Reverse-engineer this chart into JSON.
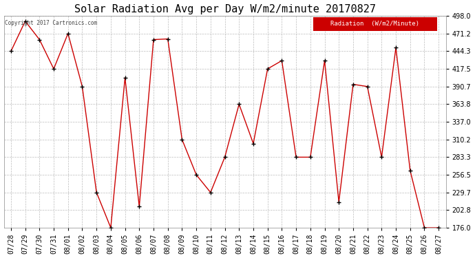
{
  "title": "Solar Radiation Avg per Day W/m2/minute 20170827",
  "copyright": "Copyright 2017 Cartronics.com",
  "legend_label": "Radiation  (W/m2/Minute)",
  "dates": [
    "7/28",
    "7/29",
    "7/30",
    "7/31",
    "8/01",
    "8/02",
    "8/03",
    "8/04",
    "8/05",
    "8/06",
    "8/07",
    "8/08",
    "8/09",
    "8/10",
    "8/11",
    "8/12",
    "8/13",
    "8/14",
    "8/15",
    "8/16",
    "8/17",
    "8/18",
    "8/19",
    "8/20",
    "8/21",
    "8/22",
    "8/23",
    "8/24",
    "8/25",
    "8/26",
    "8/27"
  ],
  "values": [
    444.3,
    490.0,
    462.0,
    417.5,
    471.2,
    390.7,
    229.7,
    176.0,
    404.0,
    208.0,
    462.0,
    463.0,
    310.2,
    256.5,
    229.7,
    283.3,
    363.8,
    304.0,
    417.5,
    430.0,
    283.3,
    283.3,
    430.0,
    215.0,
    394.0,
    390.7,
    283.3,
    449.8,
    263.0,
    176.0,
    176.0
  ],
  "ylim_min": 176.0,
  "ylim_max": 498.0,
  "yticks": [
    176.0,
    202.8,
    229.7,
    256.5,
    283.3,
    310.2,
    337.0,
    363.8,
    390.7,
    417.5,
    444.3,
    471.2,
    498.0
  ],
  "line_color": "#cc0000",
  "marker_color": "#000000",
  "bg_color": "#ffffff",
  "grid_color": "#bbbbbb",
  "title_fontsize": 11,
  "tick_fontsize": 7,
  "legend_bg": "#cc0000",
  "legend_fg": "#ffffff"
}
